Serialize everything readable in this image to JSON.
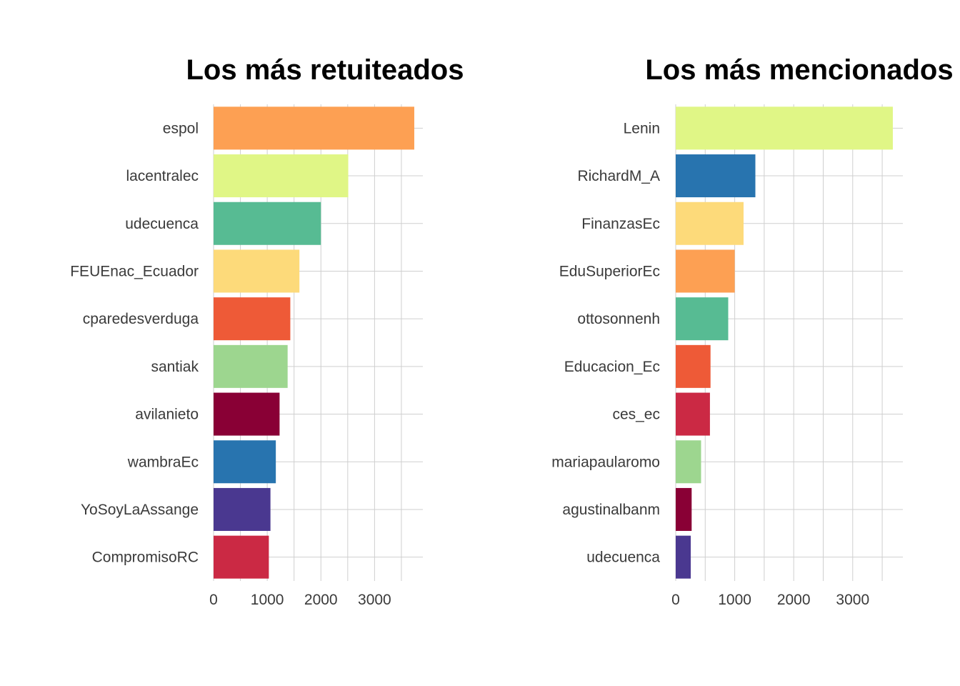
{
  "chart_data": [
    {
      "type": "bar",
      "orientation": "horizontal",
      "title": "Los más retuiteados",
      "xlabel": "",
      "ylabel": "",
      "xlim": [
        0,
        3900
      ],
      "xticks": [
        0,
        1000,
        2000,
        3000
      ],
      "xtick_labels": [
        "0",
        "1000",
        "2000",
        "3000"
      ],
      "grid": true,
      "categories": [
        "espol",
        "lacentralec",
        "udecuenca",
        "FEUEnac_Ecuador",
        "cparedesverduga",
        "santiak",
        "avilanieto",
        "wambraEc",
        "YoSoyLaAssange",
        "CompromisoRC"
      ],
      "values": [
        3740,
        2510,
        2000,
        1600,
        1430,
        1380,
        1230,
        1160,
        1060,
        1030
      ],
      "colors": [
        "#FDA053",
        "#E0F686",
        "#57BB93",
        "#FDDA7A",
        "#EE5A37",
        "#9DD68F",
        "#890035",
        "#2874AF",
        "#4A3890",
        "#CB2944"
      ]
    },
    {
      "type": "bar",
      "orientation": "horizontal",
      "title": "Los más mencionados",
      "xlabel": "",
      "ylabel": "",
      "xlim": [
        0,
        3850
      ],
      "xticks": [
        0,
        1000,
        2000,
        3000
      ],
      "xtick_labels": [
        "0",
        "1000",
        "2000",
        "3000"
      ],
      "grid": true,
      "categories": [
        "Lenin",
        "RichardM_A",
        "FinanzasEc",
        "EduSuperiorEc",
        "ottosonnenh",
        "Educacion_Ec",
        "ces_ec",
        "mariapaularomo",
        "agustinalbanm",
        "udecuenca"
      ],
      "values": [
        3680,
        1350,
        1150,
        1000,
        890,
        590,
        580,
        430,
        270,
        255
      ],
      "colors": [
        "#E0F686",
        "#2874AF",
        "#FDDA7A",
        "#FDA053",
        "#57BB93",
        "#EE5A37",
        "#CB2944",
        "#9DD68F",
        "#890035",
        "#4A3890"
      ]
    }
  ]
}
